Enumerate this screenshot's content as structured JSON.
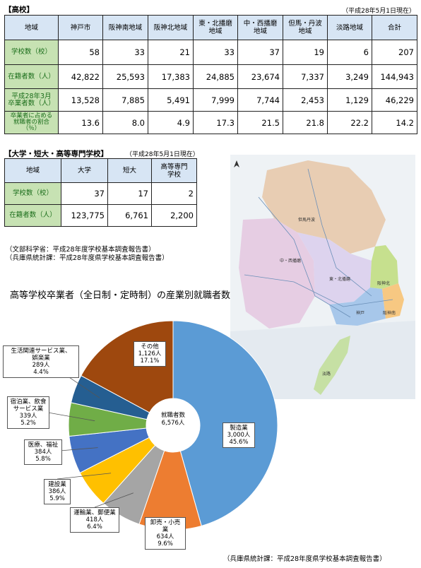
{
  "high_school": {
    "title": "【高校】",
    "date_note": "（平成28年5月1日現在）",
    "header_label": "地域",
    "columns": [
      "神戸市",
      "阪神南地域",
      "阪神北地域",
      "東・北播磨\n地域",
      "中・西播磨\n地域",
      "但馬・丹波\n地域",
      "淡路地域",
      "合計"
    ],
    "rows": [
      {
        "label": "学校数（校）",
        "values": [
          "58",
          "33",
          "21",
          "33",
          "37",
          "19",
          "6",
          "207"
        ]
      },
      {
        "label": "在籍者数（人）",
        "values": [
          "42,822",
          "25,593",
          "17,383",
          "24,885",
          "23,674",
          "7,337",
          "3,249",
          "144,943"
        ]
      },
      {
        "label": "平成28年3月\n卒業者数（人）",
        "values": [
          "13,528",
          "7,885",
          "5,491",
          "7,999",
          "7,744",
          "2,453",
          "1,129",
          "46,229"
        ]
      },
      {
        "label": "卒業者に占める\n就職者の割合\n（％）",
        "values": [
          "13.6",
          "8.0",
          "4.9",
          "17.3",
          "21.5",
          "21.8",
          "22.2",
          "14.2"
        ]
      }
    ]
  },
  "university": {
    "title": "【大学・短大・高等専門学校】",
    "date_note": "（平成28年5月1日現在）",
    "header_label": "地域",
    "columns": [
      "大学",
      "短大",
      "高等専門\n学校"
    ],
    "rows": [
      {
        "label": "学校数（校）",
        "values": [
          "37",
          "17",
          "2"
        ]
      },
      {
        "label": "在籍者数（人）",
        "values": [
          "123,775",
          "6,761",
          "2,200"
        ]
      }
    ]
  },
  "sources": [
    "（文部科学省：平成28年度学校基本調査報告書）",
    "（兵庫県統計課：平成28年度県学校基本調査報告書）"
  ],
  "map": {
    "labels": [
      "但馬丹波",
      "中・西播磨",
      "東・北播磨",
      "阪神北",
      "神戸",
      "阪神南",
      "淡路"
    ]
  },
  "chart_footer": "（兵庫県統計課：平成28年度県学校基本調査報告書）",
  "chart_data": {
    "type": "pie",
    "title": "高等学校卒業者（全日制・定時制）の産業別就職者数",
    "center_label": "就職者数",
    "center_value": "6,576人",
    "slices": [
      {
        "name": "製造業",
        "value": 3000,
        "value_label": "3,000人",
        "pct_label": "45.6%",
        "color": "#5b9bd5"
      },
      {
        "name": "卸売・小売業",
        "value": 634,
        "value_label": "634人",
        "pct_label": "9.6%",
        "color": "#ed7d31"
      },
      {
        "name": "運輸業、郵便業",
        "value": 418,
        "value_label": "418人",
        "pct_label": "6.4%",
        "color": "#a5a5a5"
      },
      {
        "name": "建設業",
        "value": 386,
        "value_label": "386人",
        "pct_label": "5.9%",
        "color": "#ffc000"
      },
      {
        "name": "医療、福祉",
        "value": 384,
        "value_label": "384人",
        "pct_label": "5.8%",
        "color": "#4472c4"
      },
      {
        "name": "宿泊業、飲食\nサービス業",
        "value": 339,
        "value_label": "339人",
        "pct_label": "5.2%",
        "color": "#70ad47"
      },
      {
        "name": "生活関連サービス業、\n娯楽業",
        "value": 289,
        "value_label": "289人",
        "pct_label": "4.4%",
        "color": "#255e91"
      },
      {
        "name": "その他",
        "value": 1126,
        "value_label": "1,126人",
        "pct_label": "17.1%",
        "color": "#9e480e"
      }
    ]
  }
}
